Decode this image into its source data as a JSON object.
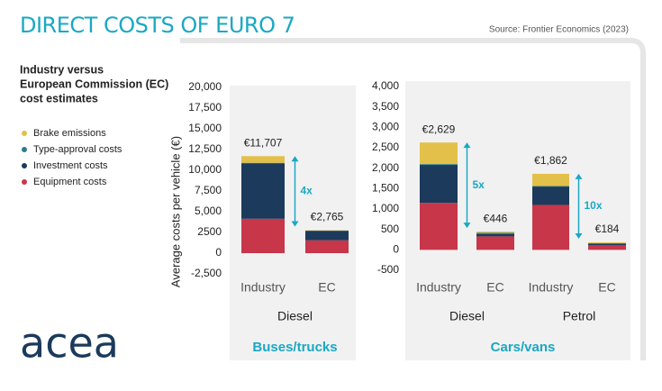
{
  "title": "DIRECT COSTS OF EURO 7",
  "source": "Source: Frontier Economics (2023)",
  "logo": "acea",
  "chart_data": [
    {
      "type": "bar",
      "stacked": true,
      "legend_title": [
        "Industry versus",
        "European Commission (EC)",
        "cost estimates"
      ],
      "y_label": "Average costs per vehicle (€)",
      "panel_label": "Buses/trucks",
      "groups": [
        "Diesel"
      ],
      "categories": [
        "Industry",
        "EC"
      ],
      "series": [
        {
          "name": "Equipment costs",
          "color": "#c8364a",
          "values": [
            4150,
            1550
          ]
        },
        {
          "name": "Investment costs",
          "color": "#1b3a5c",
          "values": [
            6700,
            1150
          ]
        },
        {
          "name": "Type-approval costs",
          "color": "#2a7d8c",
          "values": [
            50,
            15
          ]
        },
        {
          "name": "Brake emissions",
          "color": "#e3c04a",
          "values": [
            807,
            50
          ]
        }
      ],
      "value_labels": [
        "€11,707",
        "€2,765"
      ],
      "annotations": [
        "4x"
      ],
      "ylim": [
        -2500,
        20000
      ],
      "yticks": [
        {
          "value": -2500,
          "label": "-2,500"
        },
        0,
        2500,
        {
          "value": 5000,
          "label": "5,000"
        },
        {
          "value": 7500,
          "label": "7,500"
        },
        {
          "value": 10000,
          "label": "10,000"
        },
        {
          "value": 12500,
          "label": "12,500"
        },
        {
          "value": 15000,
          "label": "15,000"
        },
        {
          "value": 17500,
          "label": "17,500"
        },
        {
          "value": 20000,
          "label": "20,000"
        }
      ]
    },
    {
      "type": "bar",
      "stacked": true,
      "panel_label": "Cars/vans",
      "groups": [
        "Diesel",
        "Petrol"
      ],
      "categories": [
        "Industry",
        "EC",
        "Industry",
        "EC"
      ],
      "series": [
        {
          "values": [
            1150,
            330,
            1100,
            110
          ]
        },
        {
          "values": [
            930,
            60,
            450,
            40
          ]
        },
        {
          "values": [
            20,
            30,
            12,
            10
          ]
        },
        {
          "values": [
            529,
            26,
            300,
            24
          ]
        }
      ],
      "value_labels": [
        "€2,629",
        "€446",
        "€1,862",
        "€184"
      ],
      "annotations": [
        "5x",
        "10x"
      ],
      "ylim": [
        -500,
        4000
      ],
      "yticks": [
        -500,
        0,
        500,
        {
          "value": 1000,
          "label": "1,000"
        },
        {
          "value": 1500,
          "label": "1,500"
        },
        {
          "value": 2000,
          "label": "2,000"
        },
        {
          "value": 2500,
          "label": "2,500"
        },
        {
          "value": 3000,
          "label": "3,000"
        },
        {
          "value": 3500,
          "label": "3,500"
        },
        {
          "value": 4000,
          "label": "4,000"
        }
      ]
    }
  ]
}
